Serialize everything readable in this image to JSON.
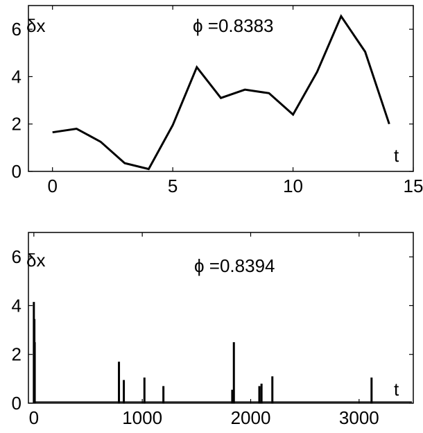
{
  "chart_data": [
    {
      "type": "line",
      "ylabel": "δx",
      "xlabel": "t",
      "annotation": "ϕ =0.8383",
      "xlim": [
        -1,
        15
      ],
      "ylim": [
        0,
        7
      ],
      "xticks": [
        "0",
        "5",
        "10",
        "15"
      ],
      "yticks": [
        "0",
        "2",
        "4",
        "6"
      ],
      "grid": false,
      "series": [
        {
          "x": [
            0,
            1,
            2,
            3,
            4,
            5,
            6,
            7,
            8,
            9,
            10,
            11,
            12,
            13,
            14
          ],
          "y": [
            1.65,
            1.8,
            1.25,
            0.35,
            0.1,
            1.95,
            4.4,
            3.1,
            3.45,
            3.3,
            2.4,
            4.2,
            6.55,
            5.05,
            2.0
          ]
        }
      ],
      "color": "#000000"
    },
    {
      "type": "bar",
      "ylabel": "δx",
      "xlabel": "t",
      "annotation": "ϕ =0.8394",
      "xlim": [
        -50,
        3500
      ],
      "ylim": [
        0,
        7
      ],
      "xticks": [
        "0",
        "1000",
        "2000",
        "3000"
      ],
      "yticks": [
        "0",
        "2",
        "4",
        "6"
      ],
      "grid": false,
      "baseline": 0.05,
      "series": [
        {
          "x": [
            0,
            5,
            8,
            785,
            830,
            1020,
            1195,
            1830,
            1845,
            2080,
            2100,
            2200,
            3115
          ],
          "y": [
            4.15,
            3.45,
            2.5,
            1.7,
            0.95,
            1.05,
            0.7,
            0.55,
            2.5,
            0.7,
            0.8,
            1.1,
            1.05
          ]
        }
      ],
      "color": "#000000"
    }
  ]
}
